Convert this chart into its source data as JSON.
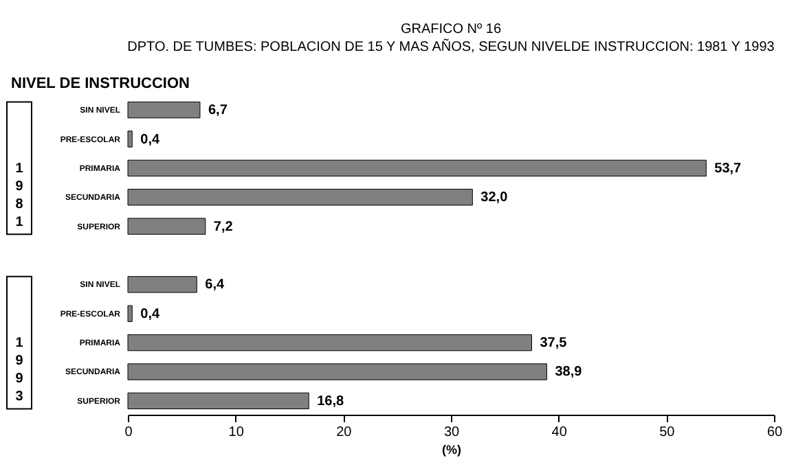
{
  "chart_data": {
    "type": "bar",
    "orientation": "horizontal",
    "title": "GRAFICO Nº 16",
    "subtitle": "DPTO. DE TUMBES: POBLACION  DE 15 Y MAS AÑOS, SEGUN NIVELDE\nINSTRUCCION:\n1981 Y 1993",
    "ylabel": "NIVEL DE INSTRUCCION",
    "xlabel": "(%)",
    "categories": [
      "SIN NIVEL",
      "PRE-ESCOLAR",
      "PRIMARIA",
      "SECUNDARIA",
      "SUPERIOR",
      null,
      "SIN NIVEL",
      "PRE-ESCOLAR",
      "PRIMARIA",
      "SECUNDARIA",
      "SUPERIOR"
    ],
    "values": [
      6.7,
      0.4,
      53.7,
      32.0,
      7.2,
      null,
      6.4,
      0.4,
      37.5,
      38.9,
      16.8
    ],
    "value_labels": [
      "6,7",
      "0,4",
      "53,7",
      "32,0",
      "7,2",
      null,
      "6,4",
      "0,4",
      "37,5",
      "38,9",
      "16,8"
    ],
    "color": "#808080",
    "xlim": [
      0,
      60
    ],
    "xticks": [
      0,
      10,
      20,
      30,
      40,
      50,
      60
    ],
    "grid": false,
    "annotations": [
      "1981",
      "1993"
    ]
  }
}
